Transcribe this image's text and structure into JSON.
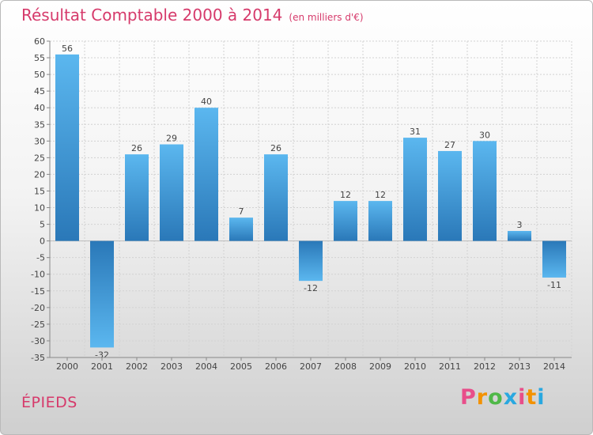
{
  "header": {
    "title": "Résultat Comptable 2000 à 2014",
    "subtitle": "(en milliers d'€)"
  },
  "commune": "ÉPIEDS",
  "logo": {
    "letters": [
      "P",
      "r",
      "o",
      "x",
      "i",
      "t",
      "i"
    ],
    "colors": [
      "#e84e8a",
      "#f39200",
      "#4fb848",
      "#29a8e0",
      "#e84e8a",
      "#f39200",
      "#29a8e0"
    ]
  },
  "chart_data": {
    "type": "bar",
    "title": "Résultat Comptable 2000 à 2014",
    "categories": [
      "2000",
      "2001",
      "2002",
      "2003",
      "2004",
      "2005",
      "2006",
      "2007",
      "2008",
      "2009",
      "2010",
      "2011",
      "2012",
      "2013",
      "2014"
    ],
    "values": [
      56,
      -32,
      26,
      29,
      40,
      7,
      26,
      -12,
      12,
      12,
      31,
      27,
      30,
      3,
      -11
    ],
    "value_labels": [
      "56",
      "-32",
      "26",
      "29",
      "40",
      "7",
      "26",
      "-12",
      "12",
      "12",
      "31",
      "27",
      "30",
      "3",
      "-11"
    ],
    "ylim": [
      -35,
      60
    ],
    "yticks": [
      60,
      55,
      50,
      45,
      40,
      35,
      30,
      25,
      20,
      15,
      10,
      5,
      0,
      -5,
      -10,
      -15,
      -20,
      -25,
      -30,
      -35
    ],
    "grid": true,
    "bar_color": "#3f9ee0"
  }
}
